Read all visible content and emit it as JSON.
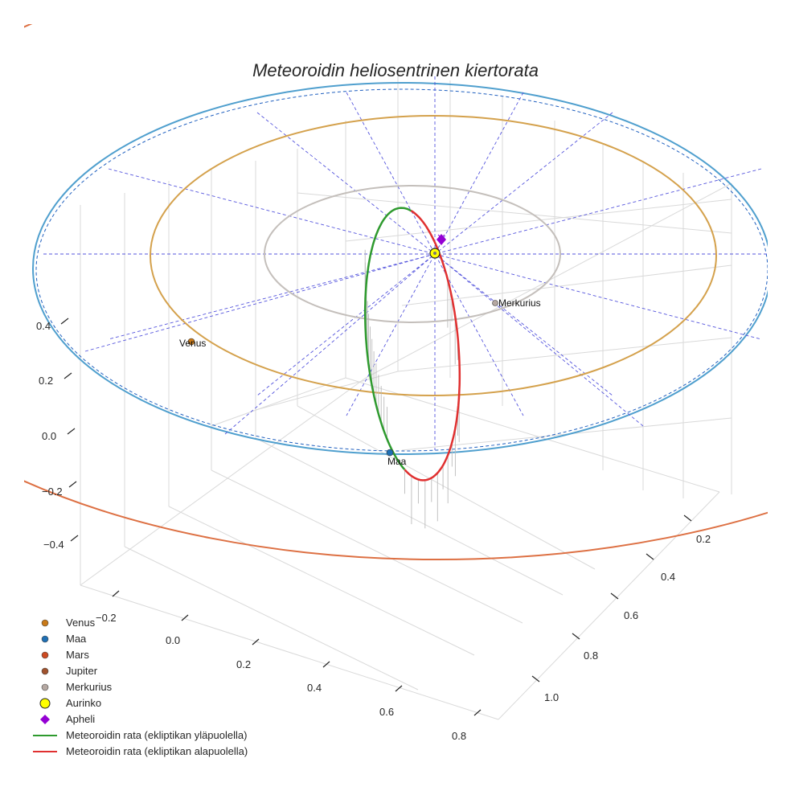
{
  "chart_data": {
    "type": "scatter",
    "projection": "3d",
    "title": "Meteoroidin heliosentrinen kiertorata",
    "axes": {
      "x": {
        "ticks": [
          "−0.2",
          "0.0",
          "0.2",
          "0.4",
          "0.6",
          "0.8"
        ]
      },
      "y": {
        "ticks": [
          "0.2",
          "0.4",
          "0.6",
          "0.8",
          "1.0"
        ]
      },
      "z": {
        "ticks": [
          "0.4",
          "0.2",
          "0.0",
          "−0.2",
          "−0.4"
        ]
      }
    },
    "planet_orbits": [
      {
        "name": "Merkurius",
        "radius_au": 0.39,
        "color": "#c4bfbb"
      },
      {
        "name": "Venus",
        "radius_au": 0.72,
        "color": "#d4a14c"
      },
      {
        "name": "Maa",
        "radius_au": 1.0,
        "color": "#4f9fce"
      },
      {
        "name": "Mars",
        "radius_au": 1.52,
        "color": "#dd7043"
      }
    ],
    "planets": [
      {
        "name": "Venus",
        "label": "Venus",
        "color": "#c97a19"
      },
      {
        "name": "Maa",
        "label": "Maa",
        "color": "#1f6fb4"
      },
      {
        "name": "Merkurius",
        "label": "Merkurius",
        "color": "#b5a8a2"
      }
    ],
    "sun": {
      "name": "Aurinko",
      "color": "#ffff00"
    },
    "aphelion": {
      "name": "Apheli",
      "color": "#9400d3"
    },
    "meteoroid_orbit": {
      "above_ecliptic": {
        "name": "Meteoroidin rata (ekliptikan yläpuolella)",
        "color": "#2e9a2e"
      },
      "below_ecliptic": {
        "name": "Meteoroidin rata (ekliptikan alapuolella)",
        "color": "#e03030"
      }
    },
    "legend": {
      "position": "lower-left",
      "entries": [
        {
          "label": "Venus",
          "marker": "circle",
          "color": "#c97a19"
        },
        {
          "label": "Maa",
          "marker": "circle",
          "color": "#1f6fb4"
        },
        {
          "label": "Mars",
          "marker": "circle",
          "color": "#cc4a22"
        },
        {
          "label": "Jupiter",
          "marker": "circle",
          "color": "#a0522d"
        },
        {
          "label": "Merkurius",
          "marker": "circle",
          "color": "#b5a8a2"
        },
        {
          "label": "Aurinko",
          "marker": "sun",
          "color": "#ffff00"
        },
        {
          "label": "Apheli",
          "marker": "diamond",
          "color": "#9400d3"
        },
        {
          "label": "Meteoroidin rata (ekliptikan yläpuolella)",
          "marker": "line",
          "color": "#2e9a2e"
        },
        {
          "label": "Meteoroidin rata (ekliptikan alapuolella)",
          "marker": "line",
          "color": "#e03030"
        }
      ]
    }
  }
}
